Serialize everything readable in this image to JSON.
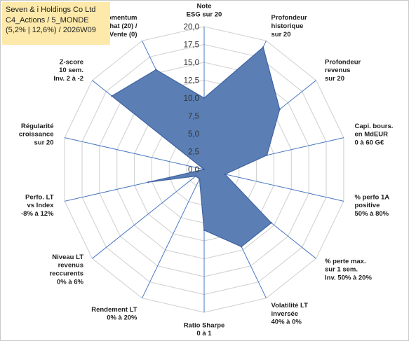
{
  "header": {
    "line1": "Seven & i Holdings Co Ltd",
    "line2": "C4_Actions / 5_MONDE",
    "line3": "(5,2% | 12,6%) / 2026W09"
  },
  "chart_data": {
    "type": "radar",
    "rmax": 20,
    "ticks": [
      "0,0",
      "2,5",
      "5,0",
      "7,5",
      "10,0",
      "12,5",
      "15,0",
      "17,5",
      "20,0"
    ],
    "axes": [
      {
        "label": [
          "Note",
          "ESG sur 20"
        ],
        "value": 10.0
      },
      {
        "label": [
          "Profondeur",
          "historique",
          "sur 20"
        ],
        "value": 19.0
      },
      {
        "label": [
          "Profondeur",
          "revenus",
          "sur 20"
        ],
        "value": 13.5
      },
      {
        "label": [
          "Capi. bours.",
          "en MdEUR",
          "0 à 60 G€"
        ],
        "value": 9.0
      },
      {
        "label": [
          "% perfo 1A",
          "positive",
          "50% à 80%"
        ],
        "value": 3.0
      },
      {
        "label": [
          "% perte max.",
          "sur 1 sem.",
          "Inv. 50% à 20%"
        ],
        "value": 12.0
      },
      {
        "label": [
          "Volatilité LT",
          "inversée",
          "40% à 0%"
        ],
        "value": 12.0
      },
      {
        "label": [
          "Ratio Sharpe",
          "0 à 1"
        ],
        "value": 8.5
      },
      {
        "label": [
          "Rendement LT",
          "0% à 20%"
        ],
        "value": 1.5
      },
      {
        "label": [
          "Niveau LT",
          "revenus",
          "reccurents",
          "0% à 6%"
        ],
        "value": 1.5
      },
      {
        "label": [
          "Perfo. LT",
          "vs Index",
          "-8% à 12%"
        ],
        "value": 8.0
      },
      {
        "label": [
          "Régularité",
          "croissance",
          "sur 20"
        ],
        "value": 0.0
      },
      {
        "label": [
          "Z-score",
          "10 sem.",
          "Inv. 2 à -2"
        ],
        "value": 16.5
      },
      {
        "label": [
          "Momentum",
          "Achat (20) /",
          "Vente (0)"
        ],
        "value": 15.5
      }
    ],
    "colors": {
      "fill": "#5b7fb5",
      "stroke": "#3f62a0",
      "grid": "#d2d2d2",
      "axis": "#4a77c0"
    }
  }
}
